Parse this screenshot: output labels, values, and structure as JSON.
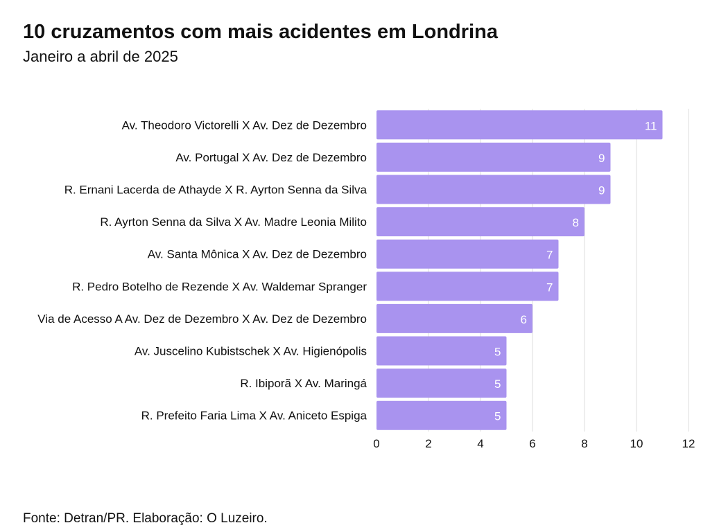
{
  "header": {
    "title": "10 cruzamentos com mais acidentes em Londrina",
    "subtitle": "Janeiro a abril de 2025"
  },
  "footer": {
    "source": "Fonte: Detran/PR. Elaboração: O Luzeiro."
  },
  "chart_data": {
    "type": "bar",
    "orientation": "horizontal",
    "categories": [
      "Av. Theodoro Victorelli X Av. Dez de Dezembro",
      "Av. Portugal X Av. Dez de Dezembro",
      "R. Ernani Lacerda de Athayde X R. Ayrton Senna da Silva",
      "R. Ayrton Senna da Silva X Av. Madre Leonia Milito",
      "Av. Santa Mônica X Av. Dez de Dezembro",
      "R. Pedro Botelho de Rezende X Av. Waldemar Spranger",
      "Via de Acesso A Av. Dez de Dezembro X Av. Dez de Dezembro",
      "Av. Juscelino Kubistschek X Av. Higienópolis",
      "R. Ibiporã X Av. Maringá",
      "R. Prefeito Faria Lima X Av. Aniceto Espiga"
    ],
    "values": [
      11,
      9,
      9,
      8,
      7,
      7,
      6,
      5,
      5,
      5
    ],
    "xlim": [
      0,
      12
    ],
    "xticks": [
      0,
      2,
      4,
      6,
      8,
      10,
      12
    ],
    "grid": true,
    "data_labels": true,
    "colors": {
      "bar": "#A993EF",
      "label_on_bar": "#ffffff",
      "grid": "#dddddd",
      "text": "#111111"
    }
  }
}
